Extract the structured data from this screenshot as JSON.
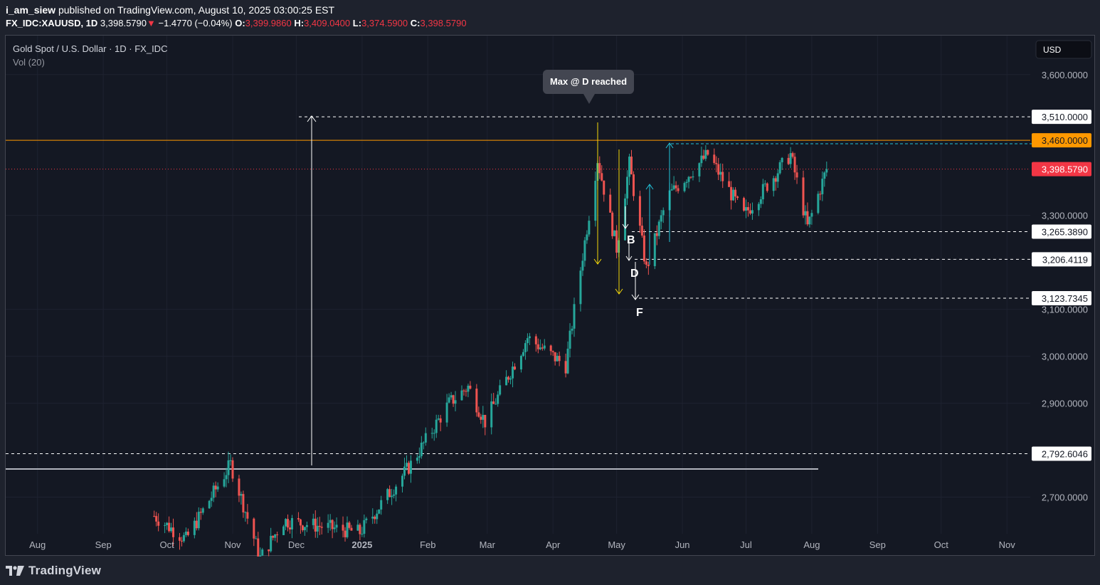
{
  "header": {
    "author": "i_am_siew",
    "published_text": " published on TradingView.com, August 10, 2025 03:00:25 EST",
    "symbol": "FX_IDC:XAUUSD, 1D",
    "last": "3,398.5790",
    "change": "−1.4770 (−0.04%)",
    "o_label": "O:",
    "o_value": "3,399.9860",
    "h_label": "H:",
    "h_value": "3,409.0400",
    "l_label": "L:",
    "l_value": "3,374.5900",
    "c_label": "C:",
    "c_value": "3,398.5790"
  },
  "legend": {
    "title": "Gold Spot / U.S. Dollar · 1D · FX_IDC",
    "volume": "Vol (20)"
  },
  "currency_button": "USD",
  "footer": {
    "brand": "TradingView"
  },
  "colors": {
    "up": "#26a69a",
    "down": "#ef5350",
    "resistance": "#ff9800",
    "last_price": "#f23645",
    "fib_arrow": "#f5d90a",
    "cyan_arrow": "#22c3d9"
  },
  "chart_data": {
    "type": "candlestick",
    "title": "Gold Spot / U.S. Dollar · 1D · FX_IDC",
    "xlabel": "",
    "ylabel": "",
    "x_range": [
      "2024-07-17",
      "2025-11-12"
    ],
    "ylim": [
      2622,
      3683
    ],
    "y_ticks": [
      "3,600.0000",
      "3,300.0000",
      "3,100.0000",
      "3,000.0000",
      "2,900.0000",
      "2,700.0000"
    ],
    "y_tick_values": [
      3600,
      3300,
      3100,
      3000,
      2900,
      2700
    ],
    "x_ticks": [
      "Aug",
      "Sep",
      "Oct",
      "Nov",
      "Dec",
      "2025",
      "Feb",
      "Mar",
      "Apr",
      "May",
      "Jun",
      "Jul",
      "Aug",
      "Sep",
      "Oct",
      "Nov"
    ],
    "x_tick_dates": [
      "2024-08-01",
      "2024-09-01",
      "2024-10-01",
      "2024-11-01",
      "2024-12-01",
      "2025-01-01",
      "2025-02-01",
      "2025-03-01",
      "2025-04-01",
      "2025-05-01",
      "2025-06-01",
      "2025-07-01",
      "2025-08-01",
      "2025-09-01",
      "2025-10-01",
      "2025-11-01"
    ],
    "close_waypoints": [
      [
        "2024-09-25",
        2660
      ],
      [
        "2024-10-10",
        2610
      ],
      [
        "2024-10-31",
        2770
      ],
      [
        "2024-11-14",
        2570
      ],
      [
        "2024-11-25",
        2650
      ],
      [
        "2024-12-31",
        2625
      ],
      [
        "2025-01-24",
        2770
      ],
      [
        "2025-02-11",
        2900
      ],
      [
        "2025-02-20",
        2935
      ],
      [
        "2025-02-28",
        2860
      ],
      [
        "2025-03-20",
        3040
      ],
      [
        "2025-04-07",
        2980
      ],
      [
        "2025-04-22",
        3420
      ],
      [
        "2025-05-01",
        3230
      ],
      [
        "2025-05-07",
        3410
      ],
      [
        "2025-05-15",
        3185
      ],
      [
        "2025-05-25",
        3340
      ],
      [
        "2025-06-13",
        3430
      ],
      [
        "2025-06-30",
        3300
      ],
      [
        "2025-07-22",
        3430
      ],
      [
        "2025-07-30",
        3275
      ],
      [
        "2025-08-08",
        3398.579
      ]
    ],
    "price_labels": [
      {
        "text": "3,510.0000",
        "value": 3510,
        "style": "dashed",
        "color": "#ffffff"
      },
      {
        "text": "3,460.0000",
        "value": 3460,
        "style": "solid",
        "color": "#ff9800"
      },
      {
        "text": "3,398.5790",
        "value": 3398.579,
        "style": "last",
        "color": "#f23645"
      },
      {
        "text": "3,265.3890",
        "value": 3265.389,
        "style": "dashed",
        "color": "#ffffff"
      },
      {
        "text": "3,206.4119",
        "value": 3206.4119,
        "style": "dashed",
        "color": "#ffffff"
      },
      {
        "text": "3,123.7345",
        "value": 3123.7345,
        "style": "dashed",
        "color": "#ffffff"
      },
      {
        "text": "2,792.6046",
        "value": 2792.6046,
        "style": "dashed",
        "color": "#ffffff"
      }
    ],
    "annotations": {
      "callout": "Max @ D reached",
      "points": [
        "B",
        "D",
        "F"
      ]
    }
  }
}
